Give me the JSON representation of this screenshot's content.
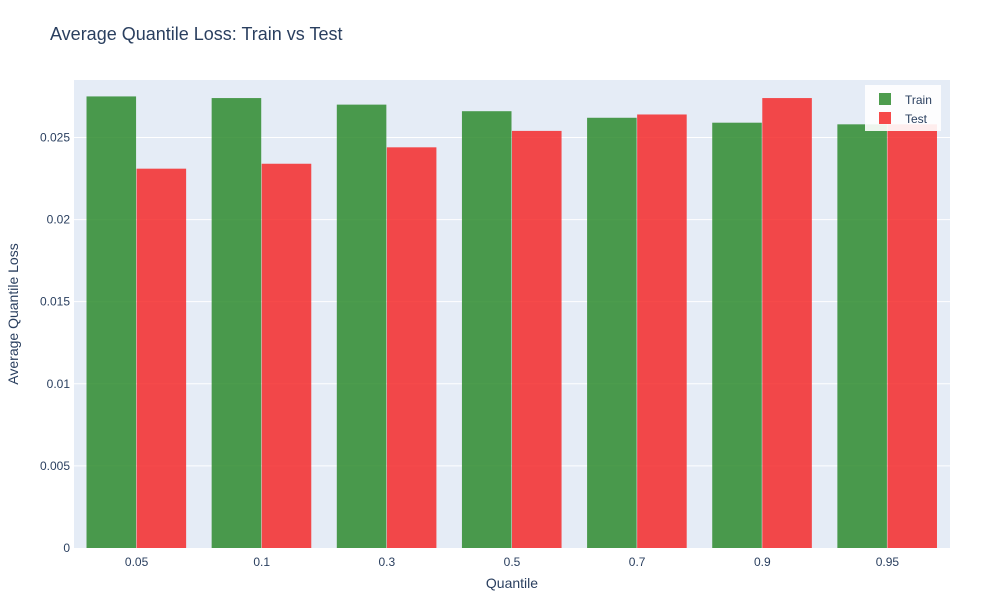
{
  "chart_data": {
    "type": "bar",
    "title": "Average Quantile Loss: Train vs Test",
    "xlabel": "Quantile",
    "ylabel": "Average Quantile Loss",
    "categories": [
      "0.05",
      "0.1",
      "0.3",
      "0.5",
      "0.7",
      "0.9",
      "0.95"
    ],
    "series": [
      {
        "name": "Train",
        "color": "#2e8b2e",
        "values": [
          0.0275,
          0.0274,
          0.027,
          0.0266,
          0.0262,
          0.0259,
          0.0258
        ]
      },
      {
        "name": "Test",
        "color": "#f52a2a",
        "values": [
          0.0231,
          0.0234,
          0.0244,
          0.0254,
          0.0264,
          0.0274,
          0.0258
        ]
      }
    ],
    "ylim": [
      0,
      0.0285
    ],
    "yticks": [
      0,
      0.005,
      0.01,
      0.015,
      0.02,
      0.025
    ],
    "ytick_labels": [
      "0",
      "0.005",
      "0.01",
      "0.015",
      "0.02",
      "0.025"
    ],
    "grid": true,
    "legend_position": "top-right",
    "colors": {
      "plot_background": "#e5ecf6",
      "grid": "#ffffff",
      "text": "#2a3f5f"
    }
  }
}
